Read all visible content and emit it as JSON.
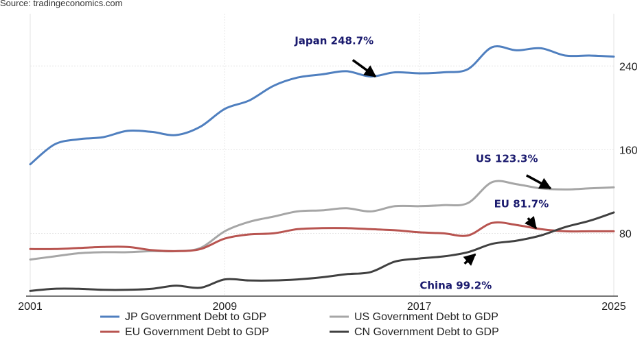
{
  "source": "Source: tradingeconomics.com",
  "chart_data": {
    "type": "line",
    "x_ticks": [
      "2001",
      "2009",
      "2017",
      "2025"
    ],
    "y_ticks": [
      80,
      160,
      240
    ],
    "xlim": [
      2001,
      2025
    ],
    "ylim": [
      20,
      290
    ],
    "grid": true,
    "legend_placement": "bottom",
    "series": [
      {
        "name": "JP Government Debt to GDP",
        "color": "#4f7fbf",
        "points": [
          [
            2001,
            146
          ],
          [
            2002,
            165
          ],
          [
            2003,
            170
          ],
          [
            2004,
            172
          ],
          [
            2005,
            178
          ],
          [
            2006,
            177
          ],
          [
            2007,
            174
          ],
          [
            2008,
            182
          ],
          [
            2009,
            199
          ],
          [
            2010,
            207
          ],
          [
            2011,
            221
          ],
          [
            2012,
            229
          ],
          [
            2013,
            232
          ],
          [
            2014,
            235
          ],
          [
            2015,
            230
          ],
          [
            2016,
            234
          ],
          [
            2017,
            233
          ],
          [
            2018,
            234
          ],
          [
            2019,
            237
          ],
          [
            2020,
            258
          ],
          [
            2021,
            255
          ],
          [
            2022,
            257
          ],
          [
            2023,
            250
          ],
          [
            2024,
            250
          ],
          [
            2025,
            249
          ]
        ]
      },
      {
        "name": "US Government Debt to GDP",
        "color": "#a6a6a6",
        "points": [
          [
            2001,
            55
          ],
          [
            2002,
            58
          ],
          [
            2003,
            61
          ],
          [
            2004,
            62
          ],
          [
            2005,
            62
          ],
          [
            2006,
            63
          ],
          [
            2007,
            63
          ],
          [
            2008,
            66
          ],
          [
            2009,
            82
          ],
          [
            2010,
            91
          ],
          [
            2011,
            96
          ],
          [
            2012,
            101
          ],
          [
            2013,
            102
          ],
          [
            2014,
            104
          ],
          [
            2015,
            101
          ],
          [
            2016,
            106
          ],
          [
            2017,
            106
          ],
          [
            2018,
            107
          ],
          [
            2019,
            109
          ],
          [
            2020,
            129
          ],
          [
            2021,
            127
          ],
          [
            2022,
            123
          ],
          [
            2023,
            122
          ],
          [
            2024,
            123
          ],
          [
            2025,
            124
          ]
        ]
      },
      {
        "name": "EU Government Debt to GDP",
        "color": "#b85450",
        "points": [
          [
            2001,
            65
          ],
          [
            2002,
            65
          ],
          [
            2003,
            66
          ],
          [
            2004,
            67
          ],
          [
            2005,
            67
          ],
          [
            2006,
            64
          ],
          [
            2007,
            63
          ],
          [
            2008,
            65
          ],
          [
            2009,
            75
          ],
          [
            2010,
            79
          ],
          [
            2011,
            80
          ],
          [
            2012,
            84
          ],
          [
            2013,
            85
          ],
          [
            2014,
            85
          ],
          [
            2015,
            84
          ],
          [
            2016,
            83
          ],
          [
            2017,
            81
          ],
          [
            2018,
            80
          ],
          [
            2019,
            78
          ],
          [
            2020,
            90
          ],
          [
            2021,
            88
          ],
          [
            2022,
            84
          ],
          [
            2023,
            82
          ],
          [
            2024,
            82
          ],
          [
            2025,
            82
          ]
        ]
      },
      {
        "name": "CN Government Debt to GDP",
        "color": "#404040",
        "points": [
          [
            2001,
            25
          ],
          [
            2002,
            27
          ],
          [
            2003,
            27
          ],
          [
            2004,
            26
          ],
          [
            2005,
            26
          ],
          [
            2006,
            27
          ],
          [
            2007,
            30
          ],
          [
            2008,
            28
          ],
          [
            2009,
            36
          ],
          [
            2010,
            35
          ],
          [
            2011,
            35
          ],
          [
            2012,
            36
          ],
          [
            2013,
            38
          ],
          [
            2014,
            41
          ],
          [
            2015,
            43
          ],
          [
            2016,
            53
          ],
          [
            2017,
            56
          ],
          [
            2018,
            58
          ],
          [
            2019,
            62
          ],
          [
            2020,
            70
          ],
          [
            2021,
            73
          ],
          [
            2022,
            78
          ],
          [
            2023,
            86
          ],
          [
            2024,
            92
          ],
          [
            2025,
            100
          ]
        ]
      }
    ],
    "annotations": [
      {
        "text": "Japan 248.7%",
        "arrow_to": [
          2015.2,
          230
        ],
        "label_at": [
          2013.5,
          261
        ]
      },
      {
        "text": "US 123.3%",
        "arrow_to": [
          2022.4,
          123
        ],
        "label_at": [
          2020.6,
          148
        ]
      },
      {
        "text": "EU 81.7%",
        "arrow_to": [
          2021.8,
          85
        ],
        "label_at": [
          2021.2,
          105
        ]
      },
      {
        "text": "China 99.2%",
        "arrow_to": [
          2019.3,
          60
        ],
        "label_at": [
          2018.5,
          27
        ]
      }
    ]
  }
}
